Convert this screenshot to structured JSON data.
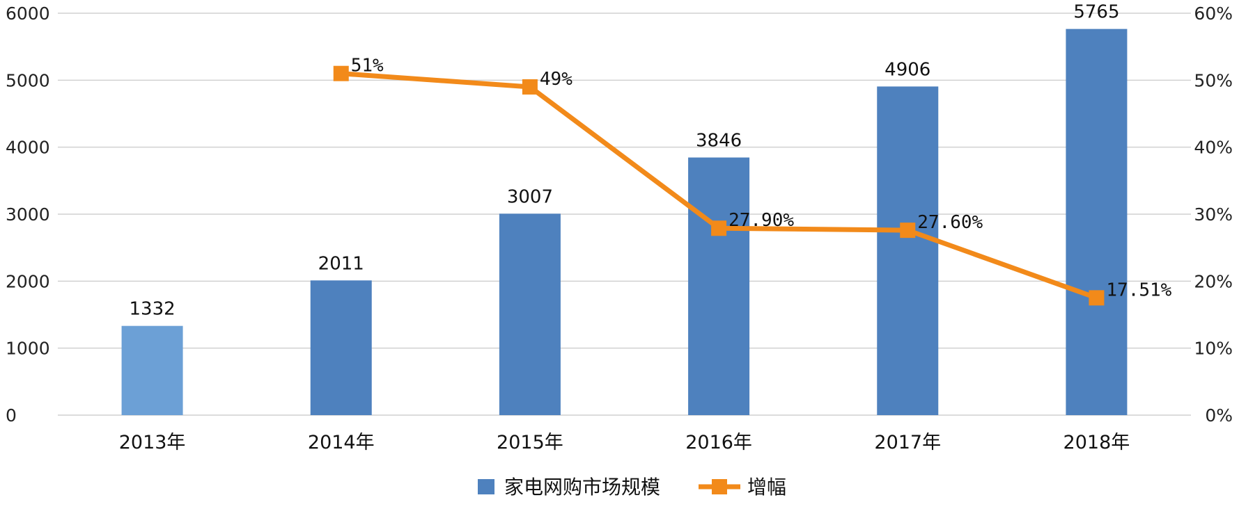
{
  "chart_data": {
    "type": "bar",
    "categories": [
      "2013年",
      "2014年",
      "2015年",
      "2016年",
      "2017年",
      "2018年"
    ],
    "series": [
      {
        "name": "家电网购市场规模",
        "kind": "bar",
        "axis": "left",
        "color": "#4E81BE",
        "values": [
          1332,
          2011,
          3007,
          3846,
          4906,
          5765
        ],
        "value_labels": [
          "1332",
          "2011",
          "3007",
          "3846",
          "4906",
          "5765"
        ]
      },
      {
        "name": "增幅",
        "kind": "line",
        "axis": "right",
        "color": "#F28A1A",
        "values": [
          null,
          51,
          49,
          27.9,
          27.6,
          17.51
        ],
        "value_labels": [
          "",
          "51%",
          "49%",
          "27.90%",
          "27.60%",
          "17.51%"
        ]
      }
    ],
    "y_left": {
      "ylim": [
        0,
        6000
      ],
      "ticks": [
        "0",
        "1000",
        "2000",
        "3000",
        "4000",
        "5000",
        "6000"
      ]
    },
    "y_right": {
      "ylim": [
        0,
        60
      ],
      "ticks": [
        "0%",
        "10%",
        "20%",
        "30%",
        "40%",
        "50%",
        "60%"
      ]
    },
    "first_bar_color": "#6CA0D6",
    "grid": true,
    "legend_position": "bottom"
  }
}
